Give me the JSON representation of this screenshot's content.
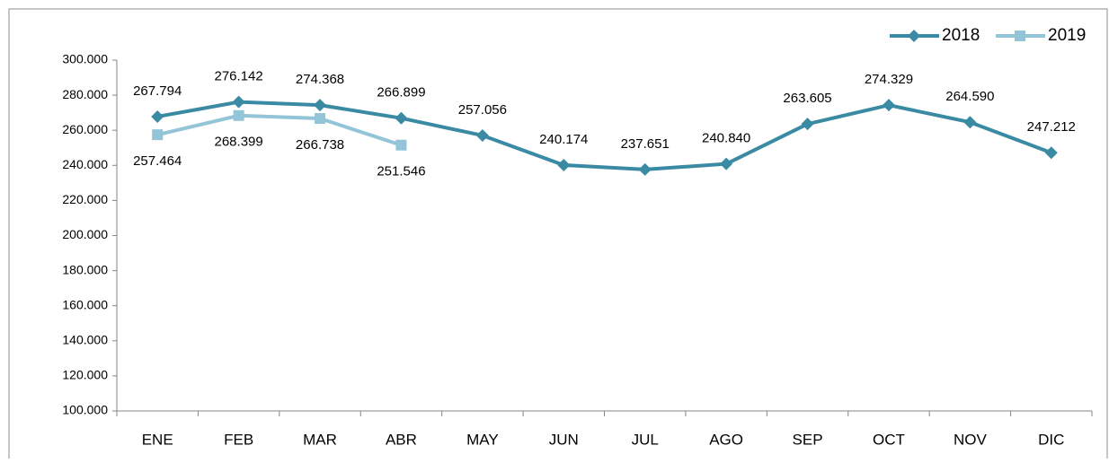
{
  "chart_data": {
    "type": "line",
    "categories": [
      "ENE",
      "FEB",
      "MAR",
      "ABR",
      "MAY",
      "JUN",
      "JUL",
      "AGO",
      "SEP",
      "OCT",
      "NOV",
      "DIC"
    ],
    "series": [
      {
        "name": "2018",
        "color": "#3a8aa3",
        "marker": "diamond",
        "values": [
          267794,
          276142,
          274368,
          266899,
          257056,
          240174,
          237651,
          240840,
          263605,
          274329,
          264590,
          247212
        ],
        "value_labels": [
          "267.794",
          "276.142",
          "274.368",
          "266.899",
          "257.056",
          "240.174",
          "237.651",
          "240.840",
          "263.605",
          "274.329",
          "264.590",
          "247.212"
        ]
      },
      {
        "name": "2019",
        "color": "#93c4d8",
        "marker": "square",
        "values": [
          257464,
          268399,
          266738,
          251546,
          null,
          null,
          null,
          null,
          null,
          null,
          null,
          null
        ],
        "value_labels": [
          "257.464",
          "268.399",
          "266.738",
          "251.546",
          null,
          null,
          null,
          null,
          null,
          null,
          null,
          null
        ]
      }
    ],
    "ylim": [
      100000,
      300000
    ],
    "yticks": [
      {
        "value": 100000,
        "label": "100.000"
      },
      {
        "value": 120000,
        "label": "120.000"
      },
      {
        "value": 140000,
        "label": "140.000"
      },
      {
        "value": 160000,
        "label": "160.000"
      },
      {
        "value": 180000,
        "label": "180.000"
      },
      {
        "value": 200000,
        "label": "200.000"
      },
      {
        "value": 220000,
        "label": "220.000"
      },
      {
        "value": 240000,
        "label": "240.000"
      },
      {
        "value": 260000,
        "label": "260.000"
      },
      {
        "value": 280000,
        "label": "280.000"
      },
      {
        "value": 300000,
        "label": "300.000"
      }
    ],
    "grid": false,
    "legend": "top-right"
  }
}
